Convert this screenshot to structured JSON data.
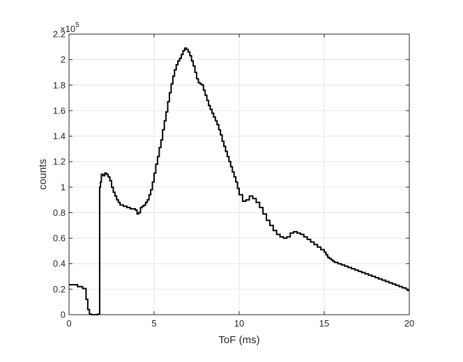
{
  "chart_data": {
    "type": "line",
    "style": "stairs",
    "title": "",
    "xlabel": "ToF (ms)",
    "ylabel": "counts",
    "xlim": [
      0,
      20
    ],
    "ylim": [
      0,
      220000
    ],
    "x_ticks": [
      0,
      5,
      10,
      15,
      20
    ],
    "x_tick_labels": [
      "0",
      "5",
      "10",
      "15",
      "20"
    ],
    "y_ticks": [
      0,
      20000,
      40000,
      60000,
      80000,
      100000,
      120000,
      140000,
      160000,
      180000,
      200000,
      220000
    ],
    "y_tick_labels": [
      "0",
      "0.2",
      "0.4",
      "0.6",
      "0.8",
      "1",
      "1.2",
      "1.4",
      "1.6",
      "1.8",
      "2",
      "2.2"
    ],
    "y_multiplier_base": "×10",
    "y_multiplier_exp": "5",
    "grid": true,
    "box": true,
    "line_color": "#000000",
    "series": [
      {
        "x": [
          0.0,
          0.5,
          0.8,
          1.0,
          1.1,
          1.2,
          1.3,
          1.5,
          1.7,
          1.8,
          1.85,
          1.9,
          2.0,
          2.1,
          2.2,
          2.3,
          2.4,
          2.5,
          2.6,
          2.7,
          2.8,
          2.9,
          3.0,
          3.1,
          3.2,
          3.3,
          3.4,
          3.5,
          3.6,
          3.7,
          3.8,
          3.9,
          4.0,
          4.1,
          4.2,
          4.3,
          4.4,
          4.5,
          4.6,
          4.7,
          4.8,
          4.9,
          5.0,
          5.1,
          5.2,
          5.3,
          5.4,
          5.5,
          5.6,
          5.7,
          5.8,
          5.9,
          6.0,
          6.1,
          6.2,
          6.3,
          6.4,
          6.5,
          6.6,
          6.7,
          6.8,
          6.9,
          7.0,
          7.1,
          7.2,
          7.3,
          7.4,
          7.5,
          7.6,
          7.7,
          7.8,
          7.9,
          8.0,
          8.1,
          8.2,
          8.3,
          8.4,
          8.5,
          8.6,
          8.7,
          8.8,
          8.9,
          9.0,
          9.1,
          9.2,
          9.3,
          9.4,
          9.5,
          9.6,
          9.7,
          9.8,
          9.9,
          10.0,
          10.2,
          10.4,
          10.6,
          10.8,
          11.0,
          11.2,
          11.4,
          11.6,
          11.8,
          12.0,
          12.2,
          12.4,
          12.6,
          12.8,
          13.0,
          13.2,
          13.4,
          13.6,
          13.8,
          14.0,
          14.2,
          14.4,
          14.6,
          14.8,
          15.0,
          15.1,
          15.2,
          15.3,
          15.4,
          15.5,
          15.6,
          15.8,
          16.0,
          16.2,
          16.4,
          16.6,
          16.8,
          17.0,
          17.2,
          17.4,
          17.6,
          17.8,
          18.0,
          18.2,
          18.4,
          18.6,
          18.8,
          19.0,
          19.2,
          19.4,
          19.6,
          19.8,
          19.9,
          20.0
        ],
        "y": [
          23500,
          22000,
          20500,
          12000,
          4000,
          500,
          0,
          0,
          500,
          100000,
          104000,
          110000,
          109000,
          111000,
          110000,
          108000,
          105000,
          100000,
          96000,
          93000,
          90000,
          88000,
          86000,
          86000,
          85000,
          85000,
          84000,
          84000,
          83000,
          83000,
          83000,
          82000,
          79000,
          80000,
          84000,
          85000,
          86000,
          88000,
          90000,
          94000,
          98000,
          104000,
          111000,
          118000,
          124000,
          131000,
          137000,
          145000,
          152000,
          159000,
          167000,
          174000,
          181000,
          187000,
          192000,
          196000,
          199000,
          201000,
          204000,
          207000,
          209000,
          208000,
          206000,
          203000,
          199000,
          195000,
          190000,
          185000,
          182000,
          181000,
          180000,
          176000,
          172000,
          168000,
          164000,
          161000,
          158000,
          155000,
          152000,
          149000,
          145000,
          141000,
          136000,
          132000,
          128000,
          124000,
          120000,
          116000,
          112000,
          108000,
          104000,
          99000,
          94000,
          89000,
          90000,
          93000,
          91000,
          88000,
          84000,
          79000,
          74000,
          70000,
          66000,
          63000,
          61000,
          60000,
          61000,
          64000,
          65000,
          64000,
          63000,
          61000,
          59000,
          57000,
          55000,
          53000,
          51000,
          49000,
          47000,
          45000,
          44000,
          43000,
          42000,
          41000,
          40000,
          39000,
          38000,
          37000,
          36000,
          35000,
          34000,
          33000,
          32000,
          31000,
          30000,
          29000,
          28000,
          27000,
          26000,
          25000,
          24000,
          23000,
          22000,
          21000,
          20000,
          19000,
          19000
        ]
      }
    ]
  }
}
